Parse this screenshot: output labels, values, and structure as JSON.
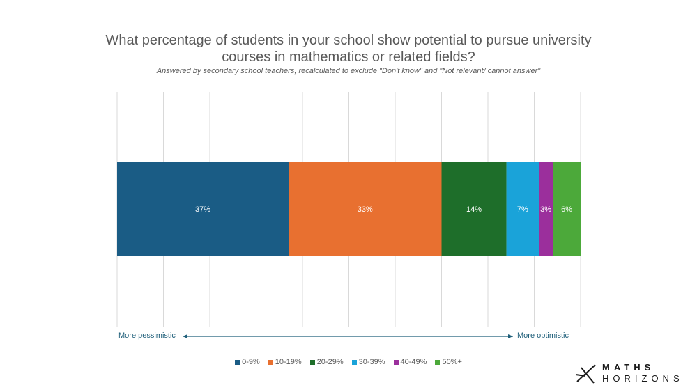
{
  "chart_data": {
    "type": "bar",
    "orientation": "horizontal-stacked-100",
    "title": "What percentage of students in your school show potential to pursue university courses in mathematics or related fields?",
    "subtitle": "Answered by secondary school teachers, recalculated to exclude \"Don't know\" and \"Not relevant/ cannot answer\"",
    "xlim": [
      0,
      100
    ],
    "grid": true,
    "legend": "bottom",
    "series": [
      {
        "name": "0-9%",
        "value": 37,
        "label": "37%",
        "color": "#1a5c85"
      },
      {
        "name": "10-19%",
        "value": 33,
        "label": "33%",
        "color": "#e87030"
      },
      {
        "name": "20-29%",
        "value": 14,
        "label": "14%",
        "color": "#1e6e2a"
      },
      {
        "name": "30-39%",
        "value": 7,
        "label": "7%",
        "color": "#1aa3d9"
      },
      {
        "name": "40-49%",
        "value": 3,
        "label": "3%",
        "color": "#9b2f9c"
      },
      {
        "name": "50%+",
        "value": 6,
        "label": "6%",
        "color": "#4ca93a"
      }
    ]
  },
  "scale": {
    "left_label": "More pessimistic",
    "right_label": "More optimistic"
  },
  "logo": {
    "top": "MATHS",
    "bottom": "HORIZONS"
  }
}
